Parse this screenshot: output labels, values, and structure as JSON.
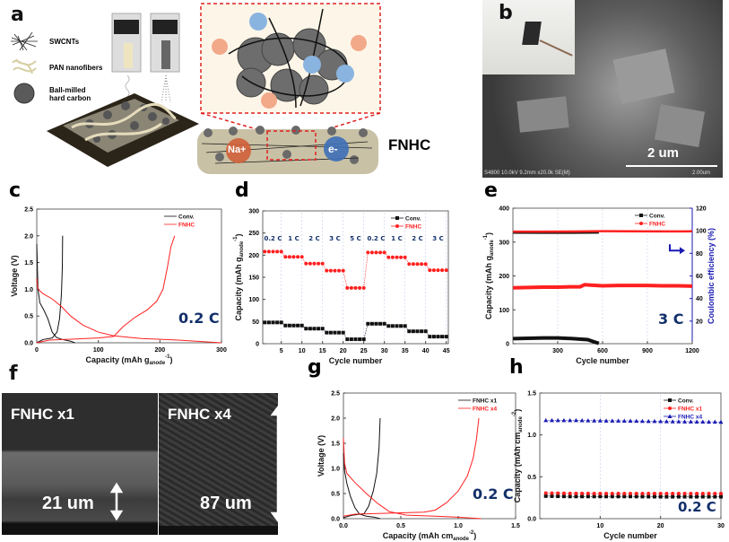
{
  "panels": {
    "a": {
      "label": "a",
      "legend": [
        "SWCNTs",
        "PAN nanofibers",
        "Ball-milled hard carbon"
      ],
      "na_label": "Na+",
      "e_label": "e-",
      "product": "FNHC"
    },
    "b": {
      "label": "b",
      "scale_bar": "2 um",
      "sem_info": "S4800 10.0kV 9.2mm x20.0k SE(M)",
      "sem_scale": "2.00um"
    },
    "f": {
      "label": "f",
      "left_title": "FNHC x1",
      "left_thickness": "21 um",
      "right_title": "FNHC x4",
      "right_thickness": "87 um"
    }
  },
  "colors": {
    "black": "#111111",
    "red": "#ff2020",
    "blue": "#1a1ab4",
    "navy": "#13306b"
  },
  "chart_data": [
    {
      "id": "c",
      "panel_label": "c",
      "type": "line",
      "xlabel": {
        "main": "Capacity (mAh g",
        "sub": "anode",
        "sup": "-1",
        "end": ")"
      },
      "ylabel": {
        "main": "Voltage (V)"
      },
      "xlim": [
        0,
        300
      ],
      "ylim": [
        0,
        2.5
      ],
      "grid": false,
      "xticks": [
        0,
        100,
        200,
        300
      ],
      "yticks": [
        0.0,
        0.5,
        1.0,
        1.5,
        2.0,
        2.5
      ],
      "annotation": "0.2 C",
      "legend_placement": "top-right",
      "series": [
        {
          "name": "Conv.",
          "color": "#111111",
          "marker": "none",
          "legend": true,
          "x": [
            0,
            2,
            5,
            12,
            18,
            25,
            32,
            42,
            55,
            62
          ],
          "y": [
            1.85,
            1.0,
            0.75,
            0.6,
            0.45,
            0.2,
            0.1,
            0.06,
            0.03,
            0.0
          ]
        },
        {
          "name": "Conv. charge",
          "color": "#111111",
          "marker": "none",
          "legend": false,
          "x": [
            0,
            10,
            25,
            33,
            37,
            40,
            41.5,
            42
          ],
          "y": [
            0.0,
            0.06,
            0.09,
            0.2,
            0.45,
            0.9,
            1.4,
            2.0
          ]
        },
        {
          "name": "FNHC",
          "color": "#ff2020",
          "marker": "none",
          "legend": true,
          "x": [
            0,
            2,
            10,
            25,
            40,
            55,
            75,
            100,
            125,
            170,
            230,
            300
          ],
          "y": [
            1.2,
            1.0,
            0.92,
            0.82,
            0.68,
            0.5,
            0.33,
            0.2,
            0.13,
            0.08,
            0.05,
            0.0
          ]
        },
        {
          "name": "FNHC charge",
          "color": "#ff2020",
          "marker": "none",
          "legend": false,
          "x": [
            0,
            20,
            60,
            100,
            125,
            140,
            160,
            180,
            195,
            205,
            212,
            218,
            224
          ],
          "y": [
            0.0,
            0.05,
            0.07,
            0.09,
            0.12,
            0.3,
            0.48,
            0.62,
            0.78,
            1.0,
            1.4,
            1.8,
            2.0
          ]
        }
      ]
    },
    {
      "id": "d",
      "panel_label": "d",
      "type": "scatter",
      "xlabel": {
        "main": "Cycle number"
      },
      "ylabel": {
        "main": "Capacity (mAh g",
        "sub": "anode",
        "sup": "-1",
        "end": ")"
      },
      "xlim": [
        0.5,
        45.5
      ],
      "ylim": [
        0,
        300
      ],
      "grid": true,
      "xticks": [
        5,
        10,
        15,
        20,
        25,
        30,
        35,
        40,
        45
      ],
      "yticks": [
        0,
        50,
        100,
        150,
        200,
        250,
        300
      ],
      "rate_labels": [
        "0.2 C",
        "1 C",
        "2 C",
        "3 C",
        "5 C",
        "0.2 C",
        "1 C",
        "2 C",
        "3 C"
      ],
      "legend_placement": "top-right",
      "series": [
        {
          "name": "Conv.",
          "color": "#111111",
          "marker": "square",
          "legend": true,
          "step_values": [
            48,
            41,
            34,
            25,
            10,
            45,
            40,
            28,
            16
          ]
        },
        {
          "name": "FNHC",
          "color": "#ff2020",
          "marker": "circle",
          "legend": true,
          "step_values": [
            208,
            196,
            181,
            165,
            126,
            206,
            195,
            180,
            166
          ]
        }
      ]
    },
    {
      "id": "e",
      "panel_label": "e",
      "type": "scatter",
      "xlabel": {
        "main": "Cycle number"
      },
      "ylabel": {
        "main": "Capacity (mAh g",
        "sub": "anode",
        "sup": "-1",
        "end": ")"
      },
      "y2label": {
        "main": "Coulombic efficiency (%)"
      },
      "xlim": [
        0,
        1200
      ],
      "ylim": [
        0,
        400
      ],
      "y2lim": [
        0,
        120
      ],
      "grid": true,
      "xticks": [
        300,
        600,
        900,
        1200
      ],
      "yticks": [
        0,
        100,
        200,
        300,
        400
      ],
      "y2ticks": [
        20,
        40,
        60,
        80,
        100,
        120
      ],
      "annotation": "3 C",
      "legend_placement": "top-right",
      "series": [
        {
          "name": "Conv.",
          "color": "#111111",
          "marker": "square",
          "legend": true,
          "x": [
            1,
            100,
            200,
            300,
            400,
            500,
            540,
            575
          ],
          "y": [
            15,
            16,
            17,
            17,
            15,
            12,
            6,
            1
          ]
        },
        {
          "name": "Conv. CE",
          "color": "#111111",
          "marker": "none",
          "legend": false,
          "axis": "y2",
          "x": [
            1,
            200,
            400,
            575
          ],
          "y": [
            98.3,
            98.2,
            98.2,
            98.4
          ]
        },
        {
          "name": "FNHC",
          "color": "#ff2020",
          "marker": "circle",
          "legend": true,
          "x": [
            1,
            100,
            200,
            300,
            400,
            450,
            480,
            520,
            600,
            700,
            800,
            900,
            1000,
            1100,
            1200
          ],
          "y": [
            165,
            166,
            167,
            167,
            168,
            168,
            174,
            173,
            171,
            172,
            172,
            172,
            171,
            171,
            170
          ]
        },
        {
          "name": "FNHC CE",
          "color": "#ff2020",
          "marker": "none",
          "legend": false,
          "axis": "y2",
          "x": [
            1,
            200,
            400,
            600,
            800,
            1000,
            1200
          ],
          "y": [
            99.2,
            99.2,
            99.3,
            99.6,
            99.5,
            99.4,
            99.5
          ]
        }
      ]
    },
    {
      "id": "g",
      "panel_label": "g",
      "type": "line",
      "xlabel": {
        "main": "Capacity (mAh cm",
        "sub": "anode",
        "sup": "-2",
        "end": ")"
      },
      "ylabel": {
        "main": "Voltage (V)"
      },
      "xlim": [
        0,
        1.5
      ],
      "ylim": [
        0,
        2.5
      ],
      "grid": false,
      "xticks": [
        0.0,
        0.5,
        1.0,
        1.5
      ],
      "yticks": [
        0.0,
        0.5,
        1.0,
        1.5,
        2.0,
        2.5
      ],
      "annotation": "0.2 C",
      "legend_placement": "top-right",
      "series": [
        {
          "name": "FNHC x1",
          "color": "#111111",
          "marker": "none",
          "legend": true,
          "x": [
            0,
            0.01,
            0.03,
            0.06,
            0.1,
            0.14,
            0.2,
            0.27,
            0.32
          ],
          "y": [
            1.3,
            0.95,
            0.7,
            0.45,
            0.22,
            0.09,
            0.05,
            0.03,
            0.0
          ]
        },
        {
          "name": "FNHC x1 charge",
          "color": "#111111",
          "marker": "none",
          "legend": false,
          "x": [
            0,
            0.08,
            0.18,
            0.22,
            0.26,
            0.29,
            0.31,
            0.32
          ],
          "y": [
            0.02,
            0.07,
            0.1,
            0.25,
            0.55,
            0.9,
            1.4,
            2.0
          ]
        },
        {
          "name": "FNHC x4",
          "color": "#ff2020",
          "marker": "none",
          "legend": true,
          "x": [
            0,
            0.01,
            0.03,
            0.1,
            0.2,
            0.3,
            0.4,
            0.55,
            0.8,
            1.0,
            1.2
          ],
          "y": [
            1.6,
            1.1,
            0.9,
            0.72,
            0.5,
            0.3,
            0.14,
            0.07,
            0.05,
            0.03,
            0.0
          ]
        },
        {
          "name": "FNHC x4 charge",
          "color": "#ff2020",
          "marker": "none",
          "legend": false,
          "x": [
            0,
            0.1,
            0.4,
            0.7,
            0.8,
            0.9,
            1.0,
            1.08,
            1.13,
            1.16,
            1.18
          ],
          "y": [
            0.05,
            0.09,
            0.11,
            0.13,
            0.17,
            0.32,
            0.55,
            0.85,
            1.2,
            1.6,
            2.0
          ]
        }
      ]
    },
    {
      "id": "h",
      "panel_label": "h",
      "type": "scatter",
      "xlabel": {
        "main": "Cycle number"
      },
      "ylabel": {
        "main": "Capacity (mAh cm",
        "sub": "anode",
        "sup": "-2",
        "end": ")"
      },
      "xlim": [
        0,
        30
      ],
      "ylim": [
        0,
        1.5
      ],
      "grid": true,
      "xticks": [
        10,
        20,
        30
      ],
      "yticks": [
        0.0,
        0.5,
        1.0,
        1.5
      ],
      "annotation": "0.2 C",
      "legend_placement": "top-right",
      "series": [
        {
          "name": "Conv.",
          "color": "#111111",
          "marker": "square",
          "legend": true,
          "x": [
            1,
            5,
            10,
            15,
            20,
            25,
            30
          ],
          "y": [
            0.27,
            0.265,
            0.265,
            0.265,
            0.262,
            0.262,
            0.262
          ]
        },
        {
          "name": "FNHC x1",
          "color": "#ff2020",
          "marker": "circle",
          "legend": true,
          "x": [
            1,
            5,
            10,
            15,
            20,
            25,
            30
          ],
          "y": [
            0.305,
            0.302,
            0.3,
            0.3,
            0.3,
            0.3,
            0.3
          ]
        },
        {
          "name": "FNHC x4",
          "color": "#1a1ab4",
          "marker": "triangle",
          "legend": true,
          "x": [
            1,
            5,
            10,
            15,
            20,
            25,
            30
          ],
          "y": [
            1.175,
            1.175,
            1.17,
            1.168,
            1.162,
            1.158,
            1.155
          ]
        }
      ]
    }
  ]
}
